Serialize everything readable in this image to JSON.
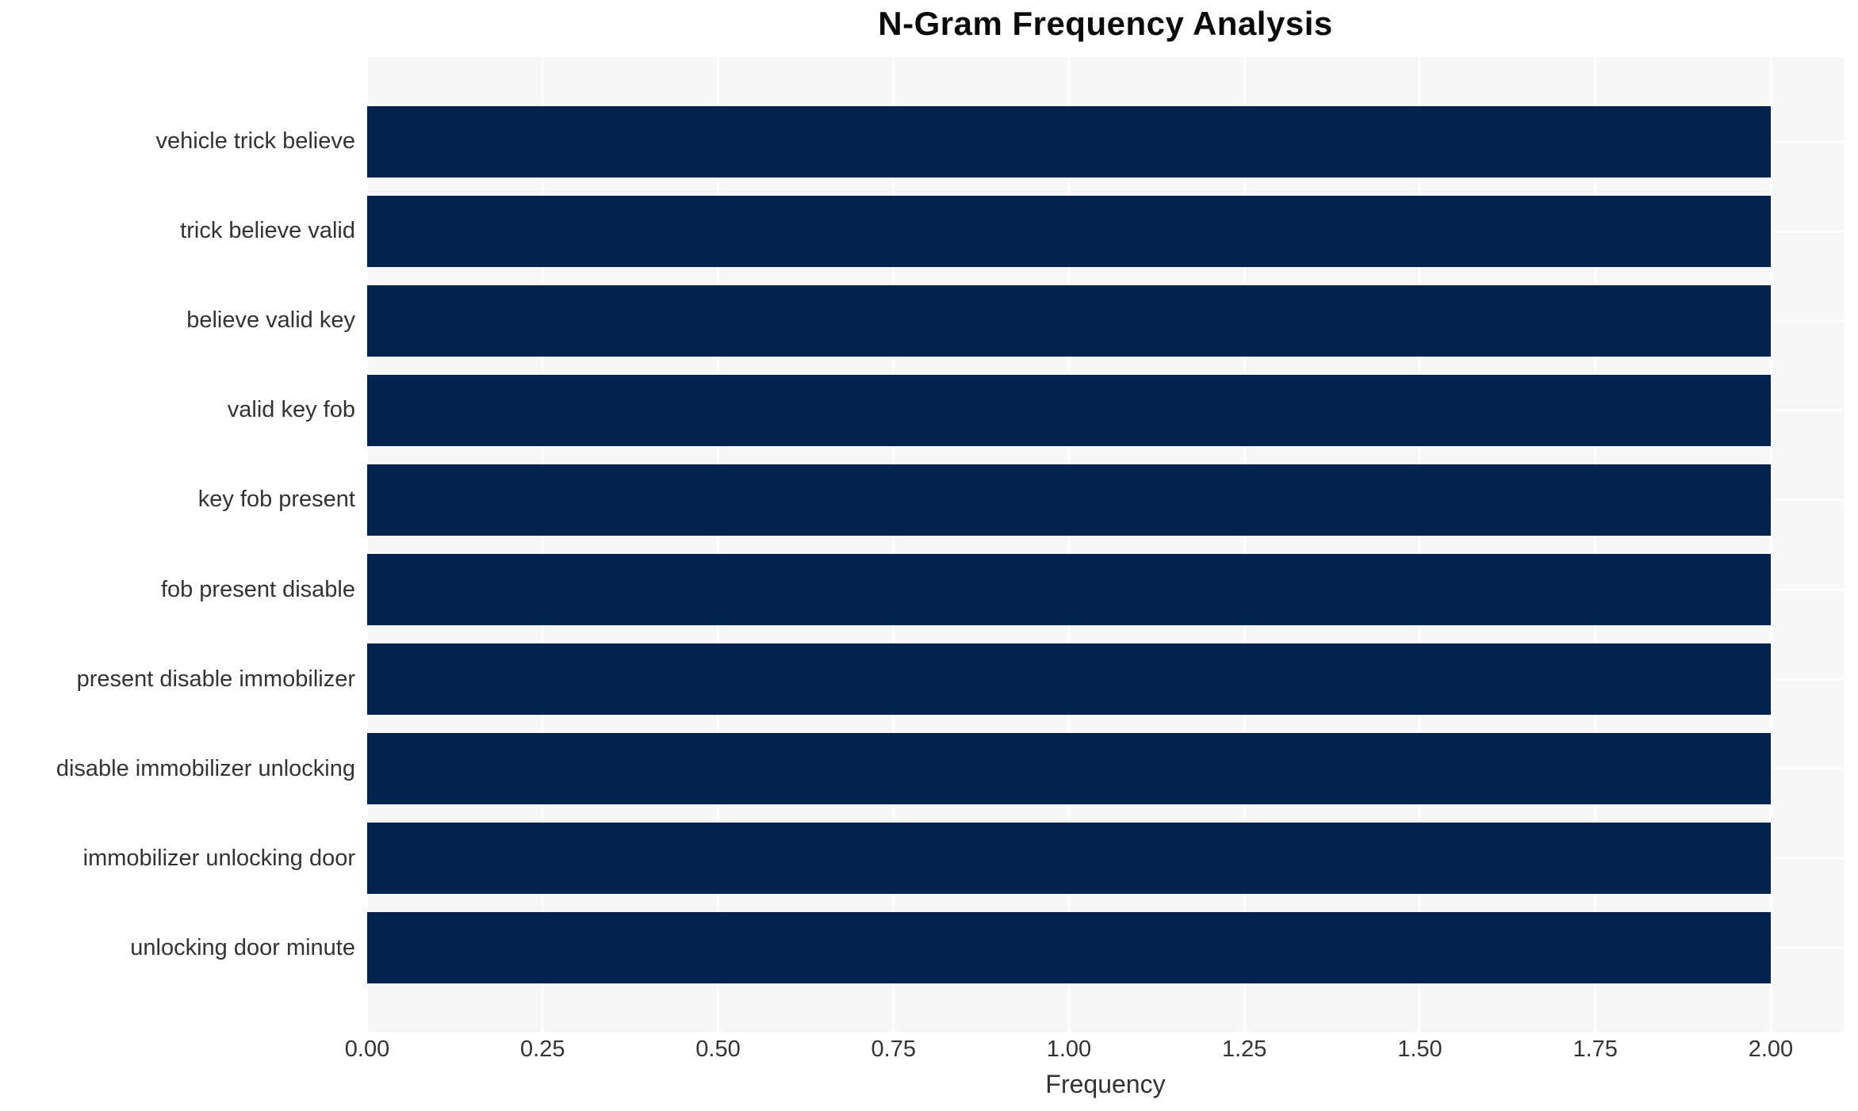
{
  "chart_data": {
    "type": "bar",
    "orientation": "horizontal",
    "title": "N-Gram Frequency Analysis",
    "xlabel": "Frequency",
    "ylabel": "",
    "categories": [
      "vehicle trick believe",
      "trick believe valid",
      "believe valid key",
      "valid key fob",
      "key fob present",
      "fob present disable",
      "present disable immobilizer",
      "disable immobilizer unlocking",
      "immobilizer unlocking door",
      "unlocking door minute"
    ],
    "values": [
      2,
      2,
      2,
      2,
      2,
      2,
      2,
      2,
      2,
      2
    ],
    "xticks": [
      0.0,
      0.25,
      0.5,
      0.75,
      1.0,
      1.25,
      1.5,
      1.75,
      2.0
    ],
    "xtick_labels": [
      "0.00",
      "0.25",
      "0.50",
      "0.75",
      "1.00",
      "1.25",
      "1.50",
      "1.75",
      "2.00"
    ],
    "xlim": [
      0,
      2.104
    ],
    "grid": true,
    "legend": false,
    "colors": {
      "bar": "#02234d",
      "plot_background": "#f7f7f7",
      "gridline": "#ffffff",
      "tick_text": "#333333",
      "title_text": "#0a0a0a"
    }
  }
}
